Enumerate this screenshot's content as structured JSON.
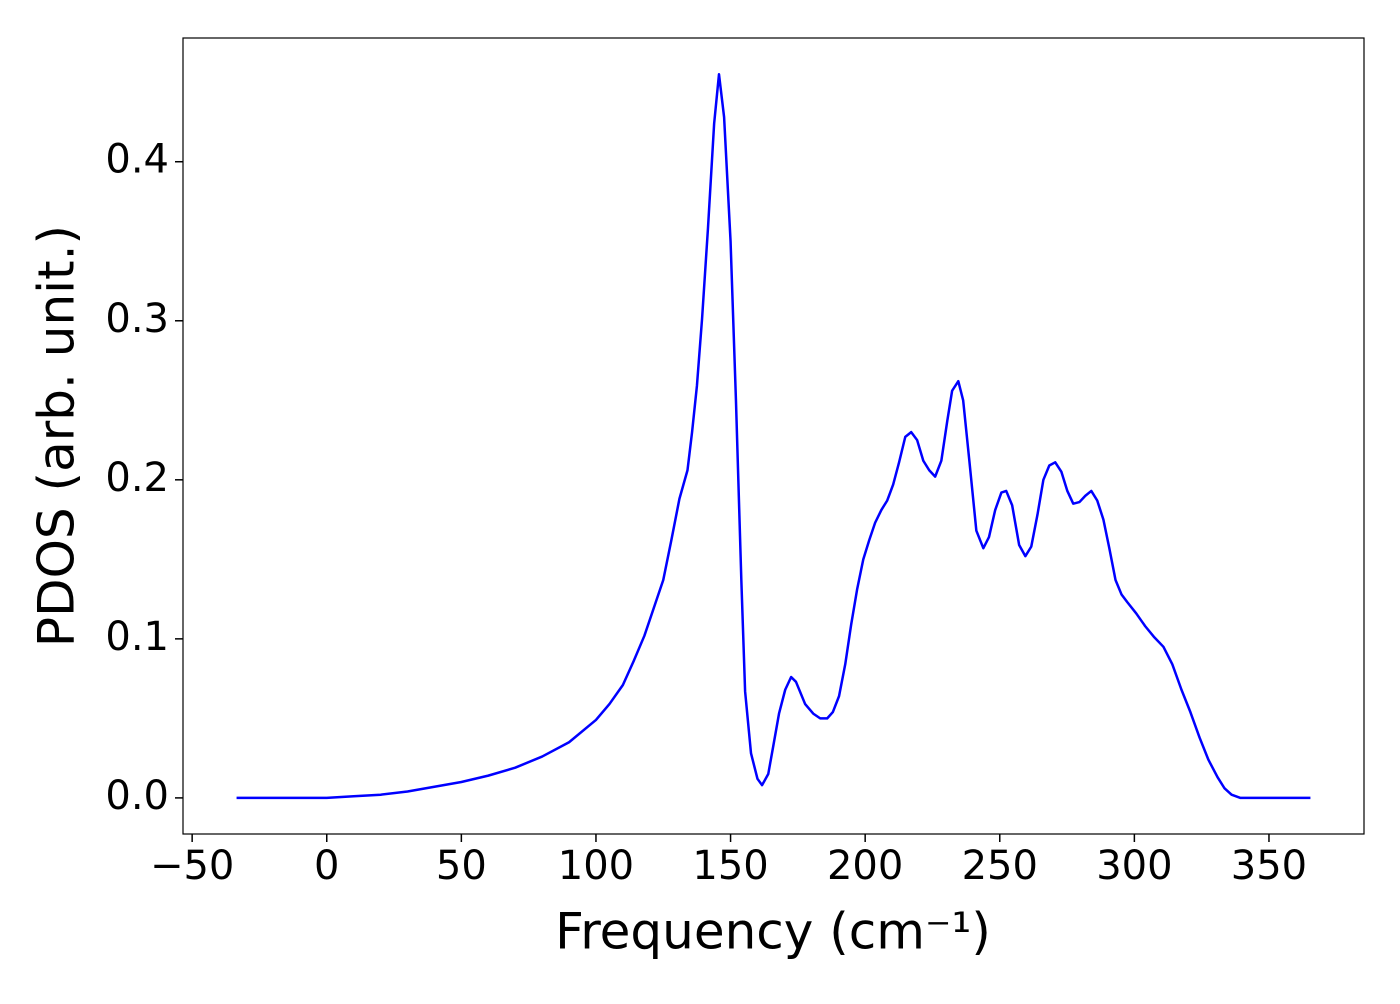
{
  "chart_data": {
    "type": "line",
    "xlabel": "Frequency (cm⁻¹)",
    "ylabel": "PDOS (arb. unit.)",
    "xlim": [
      -53.4,
      385.3
    ],
    "ylim": [
      -0.0227,
      0.4778
    ],
    "xticks": [
      {
        "value": -50,
        "label": "−50"
      },
      0,
      50,
      100,
      150,
      200,
      250,
      300,
      350
    ],
    "yticks": [
      {
        "value": 0,
        "label": "0.0"
      },
      0.1,
      0.2,
      0.3,
      0.4
    ],
    "grid": false,
    "series": [
      {
        "color": "#0000ff",
        "x": [
          -33.5,
          0,
          10,
          20,
          30,
          40,
          50,
          60,
          70,
          80,
          90,
          100,
          105,
          110,
          114,
          118,
          122,
          125,
          128,
          131,
          134,
          135.7,
          137.5,
          139.4,
          141.6,
          143.9,
          145.7,
          147.6,
          150,
          152,
          154,
          155.4,
          157.6,
          160,
          161.7,
          164,
          165.8,
          168,
          170.3,
          172.5,
          174.3,
          177.7,
          180.7,
          183.3,
          185.9,
          188,
          190.3,
          192.6,
          194.8,
          197,
          199.3,
          201.5,
          203.7,
          206,
          208.2,
          210.4,
          212.6,
          214.9,
          217.1,
          219.3,
          221.6,
          223.8,
          226,
          228.3,
          230.5,
          232.3,
          234.6,
          236.4,
          238.7,
          241.3,
          243.9,
          246,
          248.3,
          250.6,
          252.4,
          254.6,
          257.2,
          259.5,
          261.7,
          264,
          266.2,
          268.4,
          270.6,
          272.9,
          275.1,
          277.3,
          279.6,
          281.8,
          284,
          286.2,
          288.5,
          290.7,
          293,
          295.2,
          297.4,
          300.7,
          304,
          307.4,
          310.8,
          314.1,
          317.5,
          320.8,
          324.2,
          327.5,
          330.9,
          333.5,
          336.1,
          339.4,
          365.4
        ],
        "values": [
          0,
          0,
          0.001,
          0.002,
          0.004,
          0.007,
          0.01,
          0.014,
          0.019,
          0.026,
          0.035,
          0.049,
          0.059,
          0.071,
          0.086,
          0.102,
          0.122,
          0.137,
          0.162,
          0.188,
          0.206,
          0.23,
          0.259,
          0.301,
          0.358,
          0.424,
          0.455,
          0.428,
          0.35,
          0.25,
          0.137,
          0.067,
          0.028,
          0.012,
          0.008,
          0.015,
          0.032,
          0.053,
          0.068,
          0.076,
          0.073,
          0.059,
          0.053,
          0.05,
          0.05,
          0.054,
          0.064,
          0.084,
          0.109,
          0.131,
          0.15,
          0.162,
          0.173,
          0.181,
          0.187,
          0.197,
          0.211,
          0.227,
          0.23,
          0.225,
          0.212,
          0.206,
          0.202,
          0.212,
          0.237,
          0.256,
          0.262,
          0.25,
          0.212,
          0.168,
          0.157,
          0.164,
          0.181,
          0.192,
          0.193,
          0.184,
          0.159,
          0.152,
          0.158,
          0.178,
          0.2,
          0.209,
          0.211,
          0.205,
          0.193,
          0.185,
          0.186,
          0.19,
          0.193,
          0.187,
          0.175,
          0.157,
          0.137,
          0.128,
          0.123,
          0.116,
          0.108,
          0.101,
          0.095,
          0.084,
          0.068,
          0.054,
          0.038,
          0.024,
          0.013,
          0.006,
          0.002,
          0,
          0
        ]
      }
    ]
  }
}
